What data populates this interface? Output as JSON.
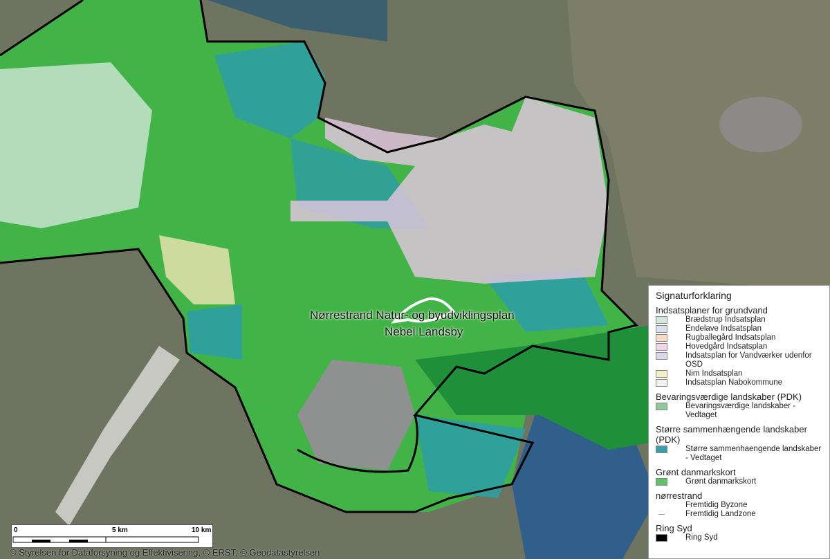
{
  "map": {
    "labels": {
      "plan_name": "Nørrestrand Natur- og byudviklingsplan",
      "place_name": "Nebel Landsby"
    },
    "scale_bar": {
      "ticks": [
        "0",
        "5 km",
        "10 km"
      ]
    },
    "attribution": "© Styrelsen for Dataforsyning og Effektivisering, © ERST, © Geodatastyrelsen",
    "colors": {
      "groen": "#3dbb45",
      "teal": "#2f9ea3",
      "pink": "#dcc6db",
      "mint": "#cfe6d8",
      "boundary": "#000000",
      "satellite": "#6f7460"
    }
  },
  "legend": {
    "title": "Signaturforklaring",
    "groups": [
      {
        "heading": "Indsatsplaner for grundvand",
        "items": [
          {
            "label": "Brædstrup Indsatsplan",
            "color": "#cfe9dc"
          },
          {
            "label": "Endelave Indsatsplan",
            "color": "#dbe0ee"
          },
          {
            "label": "Rugballegård Indsatsplan",
            "color": "#f6dcc6"
          },
          {
            "label": "Hovedgård Indsatsplan",
            "color": "#efd6e8"
          },
          {
            "label": "Indsatsplan for Vandværker udenfor OSD",
            "color": "#d8d6ea"
          },
          {
            "label": "Nim Indsatsplan",
            "color": "#f7efc4"
          },
          {
            "label": "Indsatsplan Nabokommune",
            "color": "#f2f2f2"
          }
        ]
      },
      {
        "heading": "Bevaringsværdige landskaber (PDK)",
        "items": [
          {
            "label": "Bevaringsværdige landskaber - Vedtaget",
            "color": "#8fc99a"
          }
        ]
      },
      {
        "heading": "Større sammenhængende landskaber (PDK)",
        "items": [
          {
            "label": "Større sammenhaengende landskaber - Vedtaget",
            "color": "#3a9fa8"
          }
        ]
      },
      {
        "heading": "Grønt danmarkskort",
        "items": [
          {
            "label": "Grønt danmarkskort",
            "color": "#5cc466"
          }
        ]
      },
      {
        "heading": "nørrestrand",
        "items": [
          {
            "label": "Fremtidig Byzone",
            "color": ""
          },
          {
            "label": "Fremtidig Landzone",
            "color": "line"
          }
        ]
      },
      {
        "heading": "Ring Syd",
        "items": [
          {
            "label": "Ring Syd",
            "color": "#000000"
          }
        ]
      }
    ]
  }
}
